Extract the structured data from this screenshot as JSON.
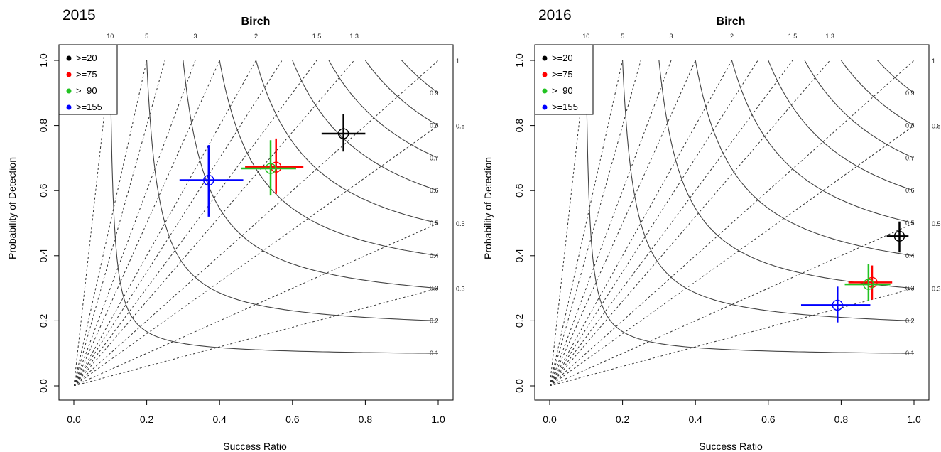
{
  "figure_title": "Birch",
  "colors": {
    "black": "#000000",
    "red": "#ff0000",
    "green": "#22c322",
    "blue": "#0000ff",
    "csi_line": "#444444",
    "bias_line": "#333333"
  },
  "chart_data": [
    {
      "type": "scatter",
      "panel_label": "2015",
      "title": "Birch",
      "xlabel": "Success Ratio",
      "ylabel": "Probability of Detection",
      "xlim": [
        0,
        1
      ],
      "ylim": [
        0,
        1
      ],
      "x_ticks": [
        "0.0",
        "0.2",
        "0.4",
        "0.6",
        "0.8",
        "1.0"
      ],
      "y_ticks": [
        "0.0",
        "0.2",
        "0.4",
        "0.6",
        "0.8",
        "1.0"
      ],
      "bias_lines": [
        {
          "value": 10,
          "label": "10",
          "labeled": true
        },
        {
          "value": 5,
          "label": "5",
          "labeled": true
        },
        {
          "value": 4,
          "label": "",
          "labeled": false
        },
        {
          "value": 3,
          "label": "3",
          "labeled": true
        },
        {
          "value": 2.5,
          "label": "",
          "labeled": false
        },
        {
          "value": 2,
          "label": "2",
          "labeled": true
        },
        {
          "value": 1.75,
          "label": "",
          "labeled": false
        },
        {
          "value": 1.5,
          "label": "1.5",
          "labeled": true
        },
        {
          "value": 1.3,
          "label": "1.3",
          "labeled": true
        },
        {
          "value": 1,
          "label": "1",
          "labeled": true
        },
        {
          "value": 0.8,
          "label": "0.8",
          "labeled": true
        },
        {
          "value": 0.5,
          "label": "0.5",
          "labeled": true
        },
        {
          "value": 0.3,
          "label": "0.3",
          "labeled": true
        }
      ],
      "csi_contours": [
        {
          "value": 0.1,
          "label": "0.1"
        },
        {
          "value": 0.2,
          "label": "0.2"
        },
        {
          "value": 0.3,
          "label": "0.3"
        },
        {
          "value": 0.4,
          "label": "0.4"
        },
        {
          "value": 0.5,
          "label": "0.5"
        },
        {
          "value": 0.6,
          "label": "0.6"
        },
        {
          "value": 0.7,
          "label": "0.7"
        },
        {
          "value": 0.8,
          "label": "0.8"
        },
        {
          "value": 0.9,
          "label": "0.9"
        }
      ],
      "legend": {
        "position": "top-left",
        "entries": [
          {
            "label": ">=20",
            "color": "#000000"
          },
          {
            "label": ">=75",
            "color": "#ff0000"
          },
          {
            "label": ">=90",
            "color": "#22c322"
          },
          {
            "label": ">=155",
            "color": "#0000ff"
          }
        ]
      },
      "series": [
        {
          "name": ">=20",
          "color": "#000000",
          "x": 0.74,
          "y": 0.775,
          "x_range": [
            0.68,
            0.8
          ],
          "y_range": [
            0.72,
            0.835
          ]
        },
        {
          "name": ">=75",
          "color": "#ff0000",
          "x": 0.555,
          "y": 0.672,
          "x_range": [
            0.47,
            0.63
          ],
          "y_range": [
            0.59,
            0.76
          ]
        },
        {
          "name": ">=90",
          "color": "#22c322",
          "x": 0.54,
          "y": 0.668,
          "x_range": [
            0.46,
            0.61
          ],
          "y_range": [
            0.585,
            0.755
          ]
        },
        {
          "name": ">=155",
          "color": "#0000ff",
          "x": 0.37,
          "y": 0.632,
          "x_range": [
            0.29,
            0.465
          ],
          "y_range": [
            0.52,
            0.74
          ]
        }
      ]
    },
    {
      "type": "scatter",
      "panel_label": "2016",
      "title": "Birch",
      "xlabel": "Success Ratio",
      "ylabel": "Probability of Detection",
      "xlim": [
        0,
        1
      ],
      "ylim": [
        0,
        1
      ],
      "x_ticks": [
        "0.0",
        "0.2",
        "0.4",
        "0.6",
        "0.8",
        "1.0"
      ],
      "y_ticks": [
        "0.0",
        "0.2",
        "0.4",
        "0.6",
        "0.8",
        "1.0"
      ],
      "bias_lines": [
        {
          "value": 10,
          "label": "10",
          "labeled": true
        },
        {
          "value": 5,
          "label": "5",
          "labeled": true
        },
        {
          "value": 4,
          "label": "",
          "labeled": false
        },
        {
          "value": 3,
          "label": "3",
          "labeled": true
        },
        {
          "value": 2.5,
          "label": "",
          "labeled": false
        },
        {
          "value": 2,
          "label": "2",
          "labeled": true
        },
        {
          "value": 1.75,
          "label": "",
          "labeled": false
        },
        {
          "value": 1.5,
          "label": "1.5",
          "labeled": true
        },
        {
          "value": 1.3,
          "label": "1.3",
          "labeled": true
        },
        {
          "value": 1,
          "label": "1",
          "labeled": true
        },
        {
          "value": 0.8,
          "label": "0.8",
          "labeled": true
        },
        {
          "value": 0.5,
          "label": "0.5",
          "labeled": true
        },
        {
          "value": 0.3,
          "label": "0.3",
          "labeled": true
        }
      ],
      "csi_contours": [
        {
          "value": 0.1,
          "label": "0.1"
        },
        {
          "value": 0.2,
          "label": "0.2"
        },
        {
          "value": 0.3,
          "label": "0.3"
        },
        {
          "value": 0.4,
          "label": "0.4"
        },
        {
          "value": 0.5,
          "label": "0.5"
        },
        {
          "value": 0.6,
          "label": "0.6"
        },
        {
          "value": 0.7,
          "label": "0.7"
        },
        {
          "value": 0.8,
          "label": "0.8"
        },
        {
          "value": 0.9,
          "label": "0.9"
        }
      ],
      "legend": {
        "position": "top-left",
        "entries": [
          {
            "label": ">=20",
            "color": "#000000"
          },
          {
            "label": ">=75",
            "color": "#ff0000"
          },
          {
            "label": ">=90",
            "color": "#22c322"
          },
          {
            "label": ">=155",
            "color": "#0000ff"
          }
        ]
      },
      "series": [
        {
          "name": ">=20",
          "color": "#000000",
          "x": 0.96,
          "y": 0.46,
          "x_range": [
            0.925,
            0.985
          ],
          "y_range": [
            0.41,
            0.505
          ]
        },
        {
          "name": ">=75",
          "color": "#ff0000",
          "x": 0.885,
          "y": 0.318,
          "x_range": [
            0.82,
            0.94
          ],
          "y_range": [
            0.265,
            0.37
          ]
        },
        {
          "name": ">=90",
          "color": "#22c322",
          "x": 0.875,
          "y": 0.312,
          "x_range": [
            0.81,
            0.935
          ],
          "y_range": [
            0.26,
            0.375
          ]
        },
        {
          "name": ">=155",
          "color": "#0000ff",
          "x": 0.79,
          "y": 0.248,
          "x_range": [
            0.69,
            0.88
          ],
          "y_range": [
            0.195,
            0.305
          ]
        }
      ]
    }
  ]
}
